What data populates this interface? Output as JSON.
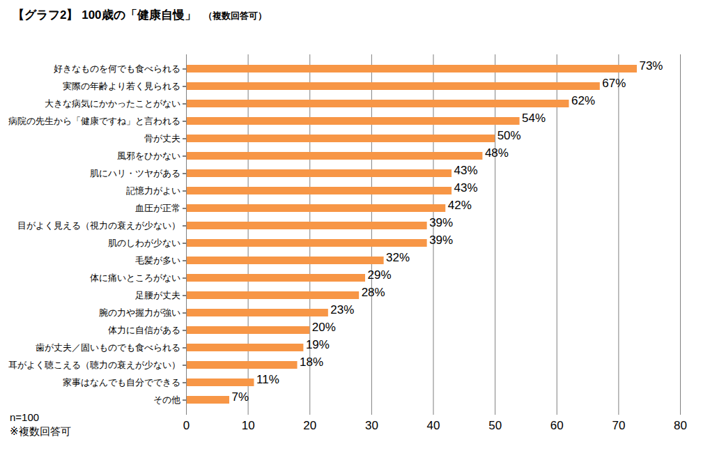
{
  "chart_data": {
    "type": "bar",
    "orientation": "horizontal",
    "title": "【グラフ2】 100歳の「健康自慢」",
    "subtitle": "（複数回答可）",
    "annotations": [
      "n=100",
      "※複数回答可"
    ],
    "categories": [
      "好きなものを何でも食べられる",
      "実際の年齢より若く見られる",
      "大きな病気にかかったことがない",
      "病院の先生から「健康ですね」と言われる",
      "骨が丈夫",
      "風邪をひかない",
      "肌にハリ・ツヤがある",
      "記憶力がよい",
      "血圧が正常",
      "目がよく見える（視力の衰えが少ない）",
      "肌のしわが少ない",
      "毛髪が多い",
      "体に痛いところがない",
      "足腰が丈夫",
      "腕の力や握力が強い",
      "体力に自信がある",
      "歯が丈夫／固いものでも食べられる",
      "耳がよく聴こえる（聴力の衰えが少ない）",
      "家事はなんでも自分でできる",
      "その他"
    ],
    "values": [
      73,
      67,
      62,
      54,
      50,
      48,
      43,
      43,
      42,
      39,
      39,
      32,
      29,
      28,
      23,
      20,
      19,
      18,
      11,
      7
    ],
    "value_labels": [
      "73%",
      "67%",
      "62%",
      "54%",
      "50%",
      "48%",
      "43%",
      "43%",
      "42%",
      "39%",
      "39%",
      "32%",
      "29%",
      "28%",
      "23%",
      "20%",
      "19%",
      "18%",
      "11%",
      "7%"
    ],
    "color": "#f79646",
    "xlim": [
      0,
      80
    ],
    "xticks": [
      0,
      10,
      20,
      30,
      40,
      50,
      60,
      70,
      80
    ],
    "grid": true,
    "data_labels": true
  }
}
